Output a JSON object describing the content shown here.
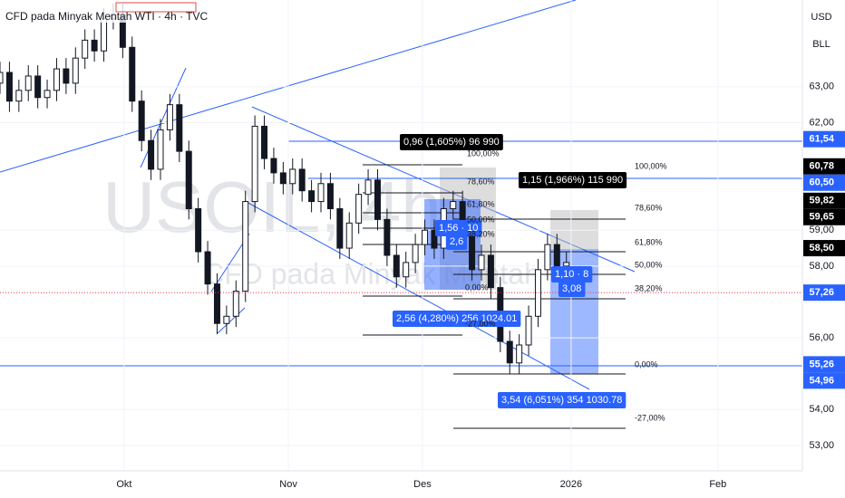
{
  "header": {
    "title": "CFD pada Minyak Mentah WTI · 4h · TVC",
    "currency": "USD",
    "unit": "BLL"
  },
  "watermark": {
    "symbol": "USOIL, 4h",
    "name": "CFD pada Minyak Mentah"
  },
  "chart_data": {
    "type": "candlestick",
    "color": "#131722",
    "xlim": [
      0,
      170
    ],
    "ylim": [
      52.29,
      65.42
    ],
    "xticks": [
      {
        "value": 26.3,
        "label": "Okt"
      },
      {
        "value": 61.1,
        "label": "Nov"
      },
      {
        "value": 89.5,
        "label": "Des"
      },
      {
        "value": 121,
        "label": "2026"
      },
      {
        "value": 152.1,
        "label": "Feb"
      }
    ],
    "yticks": [
      {
        "value": 63,
        "label": "63,00"
      },
      {
        "value": 62,
        "label": "62,00"
      },
      {
        "value": 59,
        "label": "59,00"
      },
      {
        "value": 58,
        "label": "58,00"
      },
      {
        "value": 56,
        "label": "56,00"
      },
      {
        "value": 54,
        "label": "54,00"
      },
      {
        "value": 53,
        "label": "53,00"
      }
    ],
    "x": [
      0,
      2,
      4,
      6,
      8,
      10,
      12,
      14,
      16,
      18,
      20,
      22,
      24,
      26,
      28,
      30,
      32,
      34,
      36,
      38,
      40,
      42,
      44,
      46,
      48,
      50,
      52,
      54,
      56,
      58,
      60,
      62,
      64,
      66,
      68,
      70,
      72,
      74,
      76,
      78,
      80,
      82,
      84,
      86,
      88,
      90,
      92,
      94,
      96,
      98,
      100,
      102,
      104,
      106,
      108,
      110,
      112,
      114,
      116,
      118,
      120
    ],
    "open": [
      63.1,
      63.4,
      62.6,
      62.9,
      63.3,
      62.7,
      62.9,
      63.5,
      63.1,
      63.8,
      64.3,
      64.0,
      64.9,
      65.0,
      64.1,
      62.6,
      61.5,
      60.7,
      61.8,
      62.5,
      61.2,
      59.6,
      58.4,
      57.5,
      56.4,
      56.6,
      57.3,
      59.8,
      61.9,
      61.0,
      60.6,
      60.3,
      60.7,
      60.1,
      59.8,
      60.3,
      59.6,
      58.5,
      59.2,
      60.0,
      60.4,
      59.3,
      58.3,
      57.7,
      58.1,
      58.6,
      59.0,
      58.5,
      59.6,
      59.8,
      58.9,
      57.9,
      58.3,
      57.4,
      55.9,
      55.3,
      55.8,
      56.6,
      57.9,
      58.6,
      58.0
    ],
    "high": [
      63.7,
      63.7,
      63.2,
      63.6,
      63.6,
      63.2,
      63.8,
      63.8,
      64.1,
      64.6,
      64.6,
      65.2,
      65.3,
      65.3,
      64.4,
      62.9,
      61.8,
      62.1,
      62.8,
      62.8,
      61.5,
      59.9,
      58.7,
      57.8,
      56.9,
      57.6,
      60.1,
      62.2,
      62.2,
      61.3,
      60.9,
      61.0,
      61.0,
      60.4,
      60.6,
      60.6,
      59.9,
      59.5,
      60.3,
      60.7,
      60.7,
      59.6,
      58.6,
      58.4,
      58.9,
      59.3,
      59.3,
      59.9,
      60.1,
      60.1,
      59.2,
      58.6,
      58.6,
      57.7,
      56.2,
      56.1,
      56.9,
      58.2,
      58.9,
      58.9,
      58.4
    ],
    "low": [
      62.8,
      62.3,
      62.3,
      62.6,
      62.4,
      62.4,
      62.6,
      62.8,
      62.8,
      63.5,
      63.7,
      63.7,
      64.6,
      63.8,
      62.3,
      61.2,
      60.4,
      60.4,
      61.5,
      60.9,
      59.3,
      58.1,
      57.2,
      56.1,
      56.1,
      56.3,
      57.0,
      59.5,
      60.7,
      60.3,
      60.0,
      60.0,
      59.8,
      59.5,
      59.5,
      59.3,
      58.2,
      58.2,
      58.9,
      59.7,
      59.0,
      58.0,
      57.4,
      57.4,
      57.8,
      58.3,
      58.2,
      58.2,
      59.3,
      58.6,
      57.6,
      57.6,
      57.1,
      55.6,
      55.0,
      55.0,
      55.5,
      56.3,
      57.6,
      57.7,
      57.7
    ],
    "close": [
      63.4,
      62.6,
      62.9,
      63.3,
      62.7,
      62.9,
      63.5,
      63.1,
      63.8,
      64.3,
      64.0,
      64.9,
      65.0,
      64.1,
      62.6,
      61.5,
      60.7,
      61.8,
      62.5,
      61.2,
      59.6,
      58.4,
      57.5,
      56.4,
      56.6,
      57.3,
      59.8,
      61.9,
      61.0,
      60.6,
      60.3,
      60.7,
      60.1,
      59.8,
      60.3,
      59.6,
      58.5,
      59.2,
      60.0,
      60.4,
      59.3,
      58.3,
      57.7,
      58.1,
      58.6,
      59.0,
      58.5,
      59.6,
      59.8,
      58.9,
      57.9,
      58.3,
      57.4,
      55.9,
      55.3,
      55.8,
      56.6,
      57.9,
      58.6,
      58.0,
      58.1
    ],
    "price_tags": [
      {
        "value": 61.54,
        "label": "61,54",
        "color": "#2962ff"
      },
      {
        "value": 60.78,
        "label": "60,78",
        "color": "#000000"
      },
      {
        "value": 60.5,
        "label": "60,50",
        "color": "#2962ff"
      },
      {
        "value": 59.82,
        "label": "59,82",
        "color": "#000000"
      },
      {
        "value": 59.65,
        "label": "59,65",
        "color": "#000000"
      },
      {
        "value": 58.5,
        "label": "58,50",
        "color": "#000000"
      },
      {
        "value": 57.26,
        "label": "57,26",
        "color": "#2962ff"
      },
      {
        "value": 55.26,
        "label": "55,26",
        "color": "#2962ff"
      },
      {
        "value": 54.96,
        "label": "54,96",
        "color": "#2962ff"
      }
    ],
    "annotations": [
      {
        "text": "0,96 (1,605%) 96 990",
        "color": "#000000"
      },
      {
        "text": "1,15 (1,966%) 115 990",
        "color": "#000000"
      },
      {
        "text": "2,56 (4,280%) 256 1024.01",
        "color": "#2962ff"
      },
      {
        "text": "3,54 (6,051%) 354 1030.78",
        "color": "#2962ff"
      },
      {
        "text": "1,56 · 10",
        "color": "#2962ff"
      },
      {
        "text": "2,6",
        "color": "#2962ff"
      },
      {
        "text": "1,10 · 8",
        "color": "#2962ff"
      },
      {
        "text": "3,08",
        "color": "#2962ff"
      }
    ],
    "fib_labels": [
      "100,00%",
      "78,60%",
      "61,80%",
      "50,00%",
      "38,20%",
      "0,00%",
      "-27,00%",
      "100,00%",
      "78,60%",
      "61,80%",
      "50,00%",
      "38,20%",
      "0,00%",
      "-27,00%"
    ]
  }
}
